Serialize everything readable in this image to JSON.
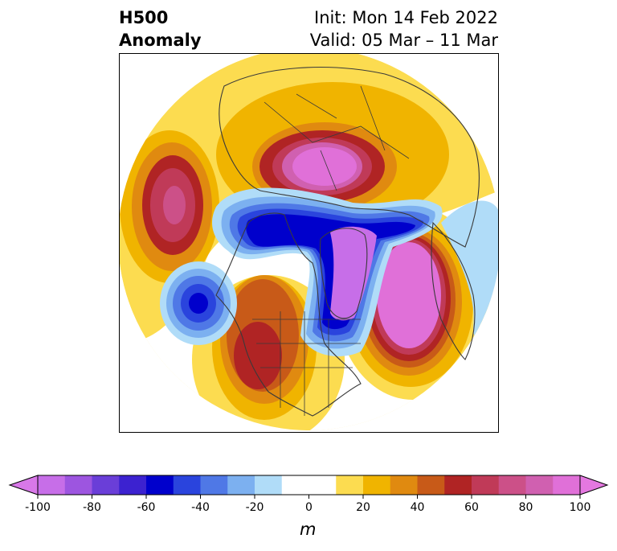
{
  "title": {
    "left_line1": "H500",
    "left_line2": "Anomaly",
    "right_line1": "Init: Mon 14 Feb 2022",
    "right_line2": "Valid: 05 Mar – 11 Mar"
  },
  "colorbar": {
    "unit": "m",
    "ticks": [
      "-100",
      "-80",
      "-60",
      "-40",
      "-20",
      "0",
      "20",
      "40",
      "60",
      "80",
      "100"
    ],
    "tick_values": [
      -100,
      -80,
      -60,
      -40,
      -20,
      0,
      20,
      40,
      60,
      80,
      100
    ],
    "colors": [
      "#c76ee8",
      "#9d55e0",
      "#6a3ed8",
      "#3c22d0",
      "#0000cc",
      "#2a44dd",
      "#4f78e6",
      "#7cb0f0",
      "#b0dcf8",
      "#ffffff",
      "#ffffff",
      "#fcdc50",
      "#f0b400",
      "#e08a10",
      "#c85a18",
      "#b02424",
      "#c03a58",
      "#cc5088",
      "#d060b0",
      "#e070d8"
    ],
    "min_extension_color": "#d878e8",
    "max_extension_color": "#e478e0"
  },
  "map": {
    "projection": "north polar stereographic",
    "field": "500 hPa geopotential height anomaly"
  }
}
